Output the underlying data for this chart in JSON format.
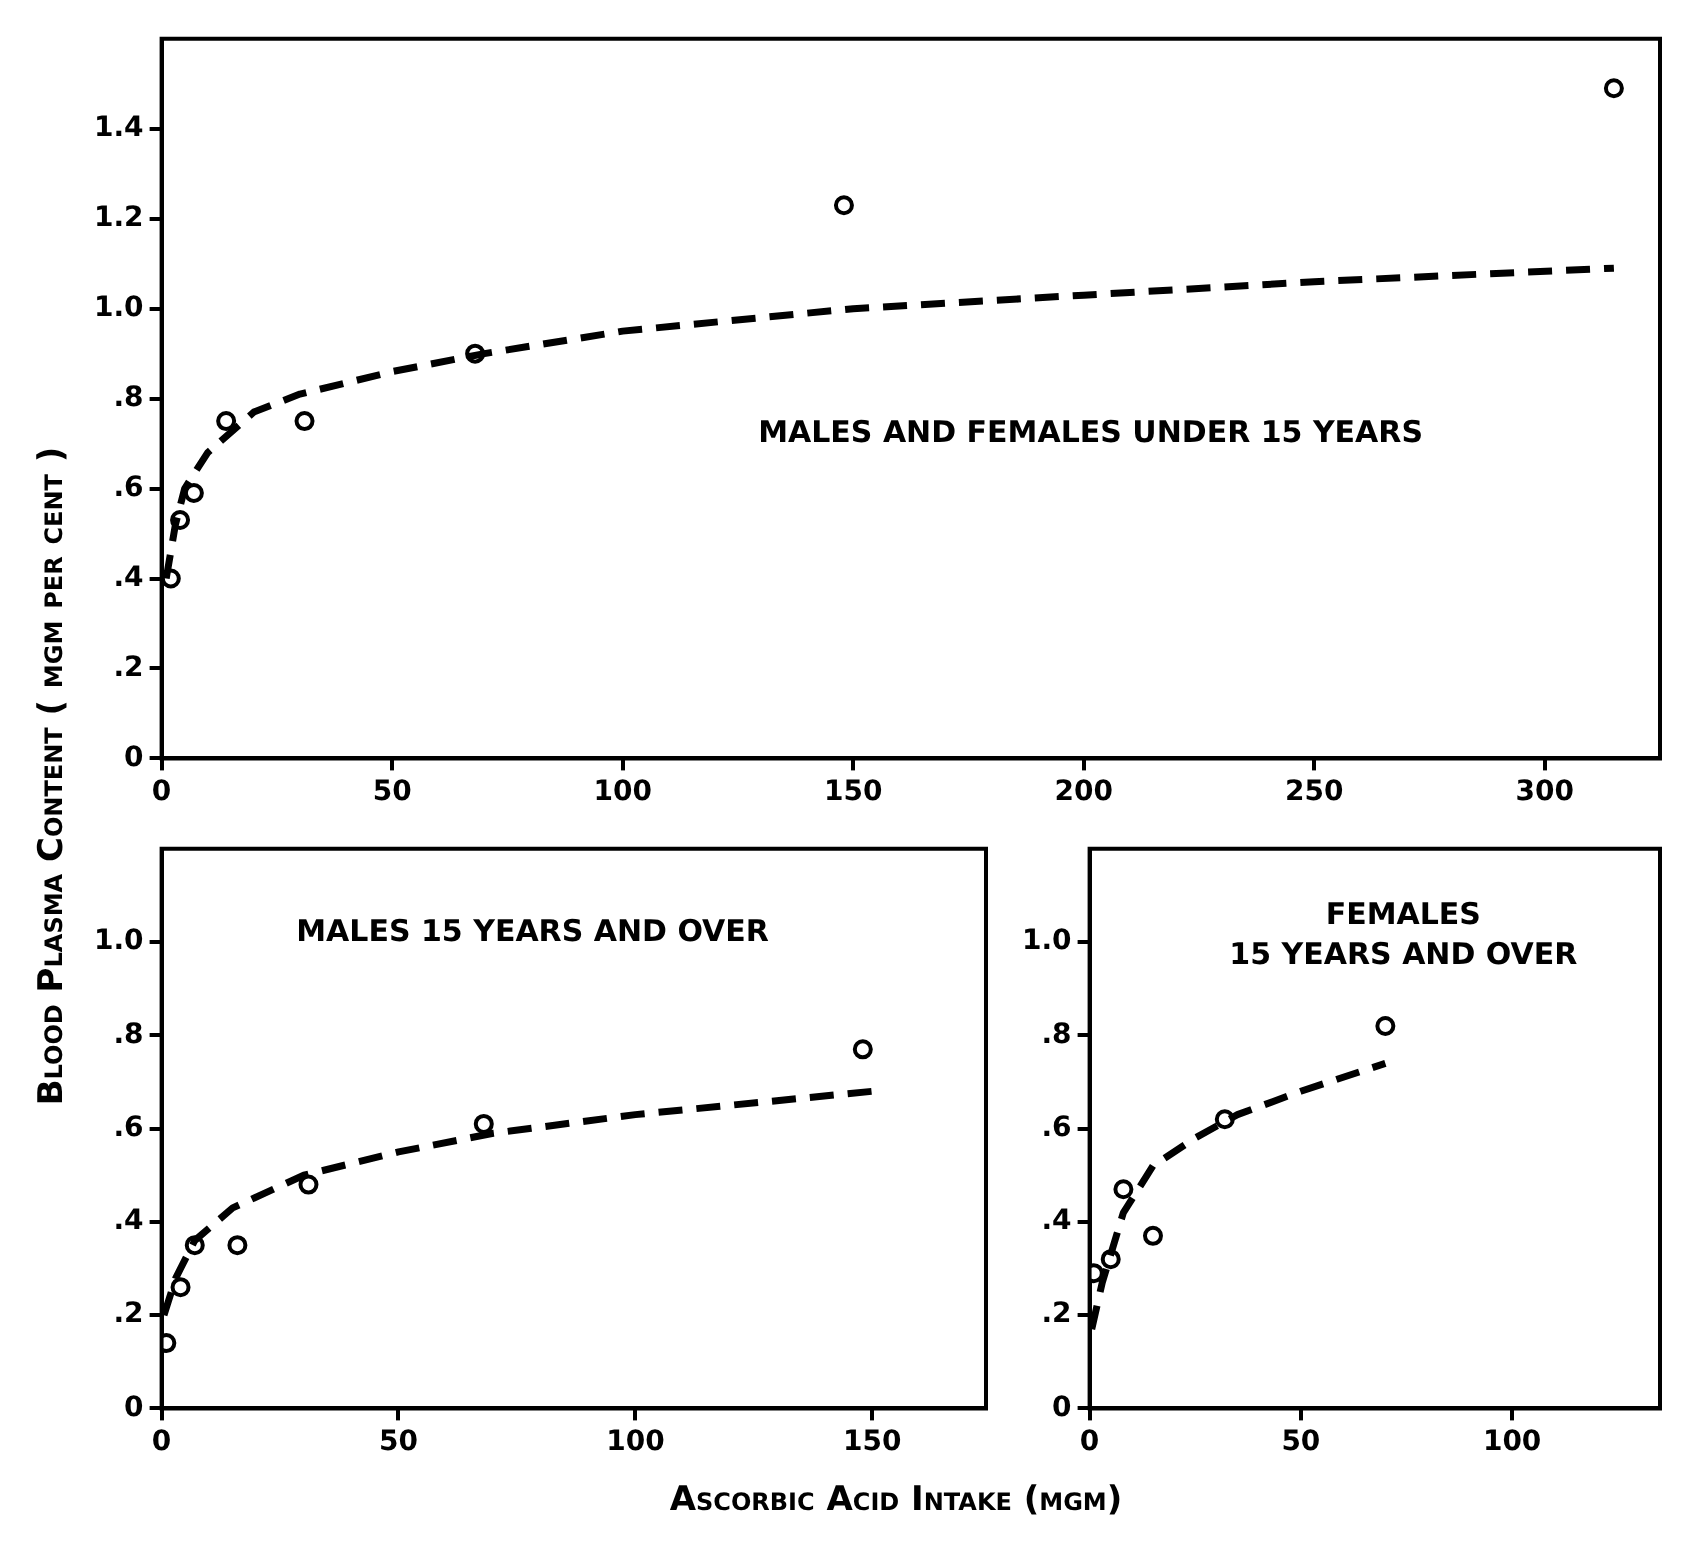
{
  "chart_data": [
    {
      "type": "scatter",
      "title": "MALES AND FEMALES UNDER 15 YEARS",
      "ylabel": "Blood Plasma Content ( mgm per cent )",
      "xlim": [
        0,
        325
      ],
      "xticks": [
        0,
        50,
        100,
        150,
        200,
        250,
        300
      ],
      "ylim": [
        0,
        1.6
      ],
      "yticks": [
        {
          "value": 0,
          "label": "0"
        },
        {
          "value": 0.2,
          "label": ".2"
        },
        {
          "value": 0.4,
          "label": ".4"
        },
        {
          "value": 0.6,
          "label": ".6"
        },
        {
          "value": 0.8,
          "label": ".8"
        },
        {
          "value": 1.0,
          "label": "1.0"
        },
        {
          "value": 1.2,
          "label": "1.2"
        },
        {
          "value": 1.4,
          "label": "1.4"
        }
      ],
      "grid": false,
      "legend": false,
      "series": [
        {
          "type": "scatter",
          "marker": "circle",
          "color": "#000000",
          "x": [
            2,
            4,
            7,
            14,
            31,
            68,
            148,
            315
          ],
          "values": [
            0.4,
            0.53,
            0.59,
            0.75,
            0.75,
            0.9,
            1.23,
            1.49
          ]
        },
        {
          "type": "line",
          "line_style": "dashed",
          "marker": "none",
          "color": "#000000",
          "x": [
            1,
            3,
            5,
            10,
            20,
            30,
            50,
            70,
            100,
            150,
            200,
            250,
            315
          ],
          "values": [
            0.4,
            0.52,
            0.6,
            0.68,
            0.77,
            0.81,
            0.86,
            0.9,
            0.95,
            1.0,
            1.03,
            1.06,
            1.09
          ]
        }
      ]
    },
    {
      "type": "scatter",
      "title": "MALES 15 YEARS AND OVER",
      "xlabel": "Ascorbic Acid Intake (mgm)",
      "xlim": [
        0,
        174
      ],
      "xticks": [
        0,
        50,
        100,
        150
      ],
      "ylim": [
        0,
        1.2
      ],
      "yticks": [
        {
          "value": 0,
          "label": "0"
        },
        {
          "value": 0.2,
          "label": ".2"
        },
        {
          "value": 0.4,
          "label": ".4"
        },
        {
          "value": 0.6,
          "label": ".6"
        },
        {
          "value": 0.8,
          "label": ".8"
        },
        {
          "value": 1.0,
          "label": "1.0"
        }
      ],
      "grid": false,
      "legend": false,
      "series": [
        {
          "type": "scatter",
          "marker": "circle",
          "color": "#000000",
          "x": [
            1,
            4,
            7,
            16,
            31,
            68,
            148
          ],
          "values": [
            0.14,
            0.26,
            0.35,
            0.35,
            0.48,
            0.61,
            0.77
          ]
        },
        {
          "type": "line",
          "line_style": "dashed",
          "marker": "none",
          "color": "#000000",
          "x": [
            0.5,
            3,
            7,
            15,
            30,
            50,
            70,
            100,
            150
          ],
          "values": [
            0.2,
            0.28,
            0.36,
            0.43,
            0.5,
            0.55,
            0.59,
            0.63,
            0.68
          ]
        }
      ]
    },
    {
      "type": "scatter",
      "title": "FEMALES\n15 YEARS AND OVER",
      "xlim": [
        0,
        135
      ],
      "xticks": [
        0,
        50,
        100
      ],
      "ylim": [
        0,
        1.2
      ],
      "yticks": [
        {
          "value": 0,
          "label": "0"
        },
        {
          "value": 0.2,
          "label": ".2"
        },
        {
          "value": 0.4,
          "label": ".4"
        },
        {
          "value": 0.6,
          "label": ".6"
        },
        {
          "value": 0.8,
          "label": ".8"
        },
        {
          "value": 1.0,
          "label": "1.0"
        }
      ],
      "grid": false,
      "legend": false,
      "series": [
        {
          "type": "scatter",
          "marker": "circle",
          "color": "#000000",
          "x": [
            1,
            5,
            8,
            15,
            32,
            70
          ],
          "values": [
            0.29,
            0.32,
            0.47,
            0.37,
            0.62,
            0.82
          ]
        },
        {
          "type": "line",
          "line_style": "dashed",
          "marker": "none",
          "color": "#000000",
          "x": [
            0.5,
            3,
            8,
            15,
            25,
            35,
            50,
            70
          ],
          "values": [
            0.17,
            0.27,
            0.42,
            0.52,
            0.58,
            0.63,
            0.68,
            0.74
          ]
        }
      ]
    }
  ]
}
